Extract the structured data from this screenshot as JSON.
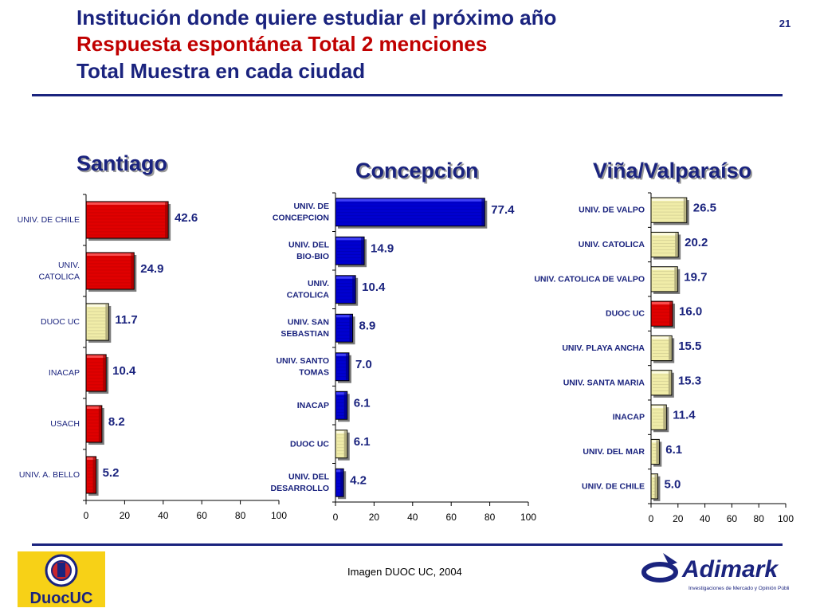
{
  "header": {
    "title_line1": "Institución donde quiere estudiar el próximo año",
    "title_line2": "Respuesta espontánea Total 2 menciones",
    "title_line3": "Total Muestra en cada ciudad",
    "page_number": "21"
  },
  "footer": {
    "caption": "Imagen DUOC UC, 2004",
    "duoc_logo_text": "DuocUC",
    "adimark_logo_text": "Adimark",
    "adimark_tagline": "Investigaciones de Mercado y Opinión Pública"
  },
  "colors": {
    "title_blue": "#1a237e",
    "title_red": "#c00000",
    "bar_red": "#e00000",
    "bar_blue": "#0000d0",
    "bar_yellow": "#f0eca8"
  },
  "chart_data": [
    {
      "type": "bar",
      "orientation": "horizontal",
      "title": "Santiago",
      "categories": [
        "UNIV. DE CHILE",
        "UNIV.\nCATOLICA",
        "DUOC UC",
        "INACAP",
        "USACH",
        "UNIV. A. BELLO"
      ],
      "values": [
        42.6,
        24.9,
        11.7,
        10.4,
        8.2,
        5.2
      ],
      "value_labels": [
        "42.6",
        "24.9",
        "11.7",
        "10.4",
        "8.2",
        "5.2"
      ],
      "bar_colors": [
        "red",
        "red",
        "yellow",
        "red",
        "red",
        "red"
      ],
      "xlim": [
        0,
        100
      ],
      "xticks": [
        "0",
        "20",
        "40",
        "60",
        "80",
        "100"
      ],
      "grid": false
    },
    {
      "type": "bar",
      "orientation": "horizontal",
      "title": "Concepción",
      "categories": [
        "UNIV. DE\nCONCEPCION",
        "UNIV. DEL\nBIO-BIO",
        "UNIV.\nCATOLICA",
        "UNIV. SAN\nSEBASTIAN",
        "UNIV. SANTO\nTOMAS",
        "INACAP",
        "DUOC UC",
        "UNIV. DEL\nDESARROLLO"
      ],
      "values": [
        77.4,
        14.9,
        10.4,
        8.9,
        7.0,
        6.1,
        6.1,
        4.2
      ],
      "value_labels": [
        "77.4",
        "14.9",
        "10.4",
        "8.9",
        "7.0",
        "6.1",
        "6.1",
        "4.2"
      ],
      "bar_colors": [
        "blue",
        "blue",
        "blue",
        "blue",
        "blue",
        "blue",
        "yellow",
        "blue"
      ],
      "xlim": [
        0,
        100
      ],
      "xticks": [
        "0",
        "20",
        "40",
        "60",
        "80",
        "100"
      ],
      "grid": false
    },
    {
      "type": "bar",
      "orientation": "horizontal",
      "title": "Viña/Valparaíso",
      "categories": [
        "UNIV. DE VALPO",
        "UNIV. CATOLICA",
        "UNIV. CATOLICA DE VALPO",
        "DUOC UC",
        "UNIV. PLAYA ANCHA",
        "UNIV. SANTA MARIA",
        "INACAP",
        "UNIV. DEL MAR",
        "UNIV. DE CHILE"
      ],
      "values": [
        26.5,
        20.2,
        19.7,
        16.0,
        15.5,
        15.3,
        11.4,
        6.1,
        5.0
      ],
      "value_labels": [
        "26.5",
        "20.2",
        "19.7",
        "16.0",
        "15.5",
        "15.3",
        "11.4",
        "6.1",
        "5.0"
      ],
      "bar_colors": [
        "yellow",
        "yellow",
        "yellow",
        "red",
        "yellow",
        "yellow",
        "yellow",
        "yellow",
        "yellow"
      ],
      "xlim": [
        0,
        100
      ],
      "xticks": [
        "0",
        "20",
        "40",
        "60",
        "80",
        "100"
      ],
      "grid": false
    }
  ]
}
